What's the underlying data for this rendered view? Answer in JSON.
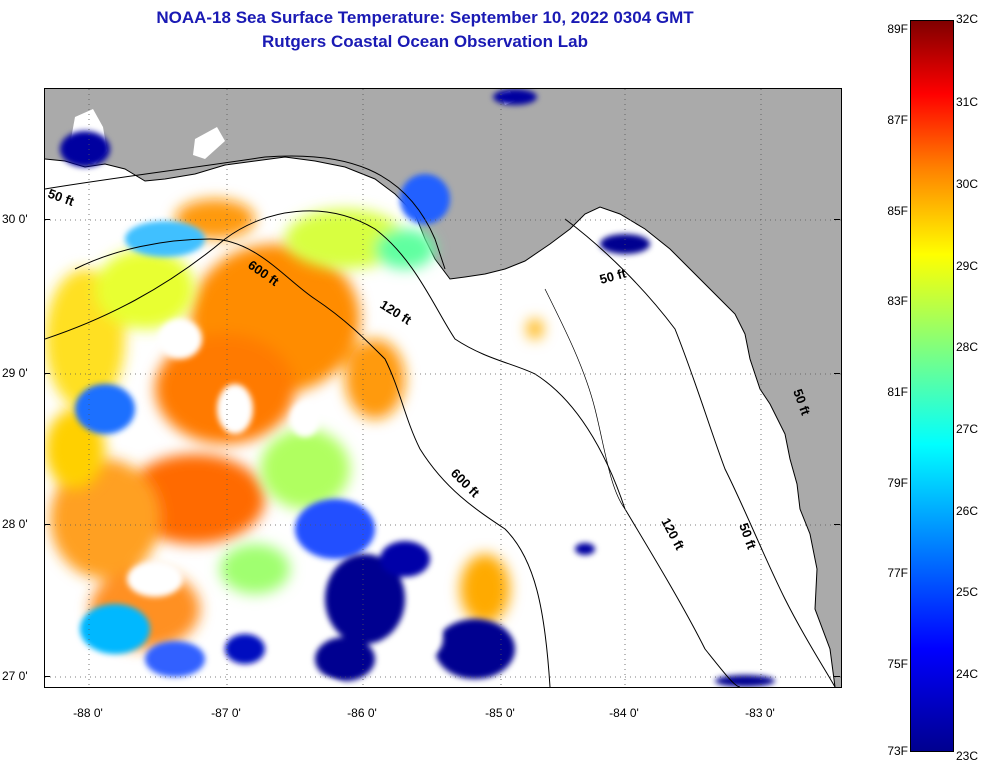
{
  "title_line1": "NOAA-18 Sea Surface Temperature:  September 10, 2022 0304 GMT",
  "title_line2": "Rutgers Coastal Ocean Observation Lab",
  "lat_labels": [
    "30 0'",
    "29 0'",
    "28 0'",
    "27 0'"
  ],
  "lon_labels": [
    "-88 0'",
    "-87 0'",
    "-86 0'",
    "-85 0'",
    "-84 0'",
    "-83 0'"
  ],
  "colorbar_f": [
    "89F",
    "87F",
    "85F",
    "83F",
    "81F",
    "79F",
    "77F",
    "75F",
    "73F"
  ],
  "colorbar_c": [
    "32C",
    "31C",
    "30C",
    "29C",
    "28C",
    "27C",
    "26C",
    "25C",
    "24C",
    "23C"
  ],
  "contour_labels": [
    "50 ft",
    "600 ft",
    "120 ft",
    "50 ft",
    "600 ft",
    "120 ft",
    "50 ft",
    "50 ft"
  ],
  "colors": {
    "title": "#1a1ab4",
    "land": "#aaaaaa",
    "no_data": "#ffffff",
    "colormap": [
      "#00008f",
      "#0000ff",
      "#007fff",
      "#00ffff",
      "#7fff7f",
      "#ffff00",
      "#ff7f00",
      "#ff0000",
      "#800000"
    ]
  }
}
